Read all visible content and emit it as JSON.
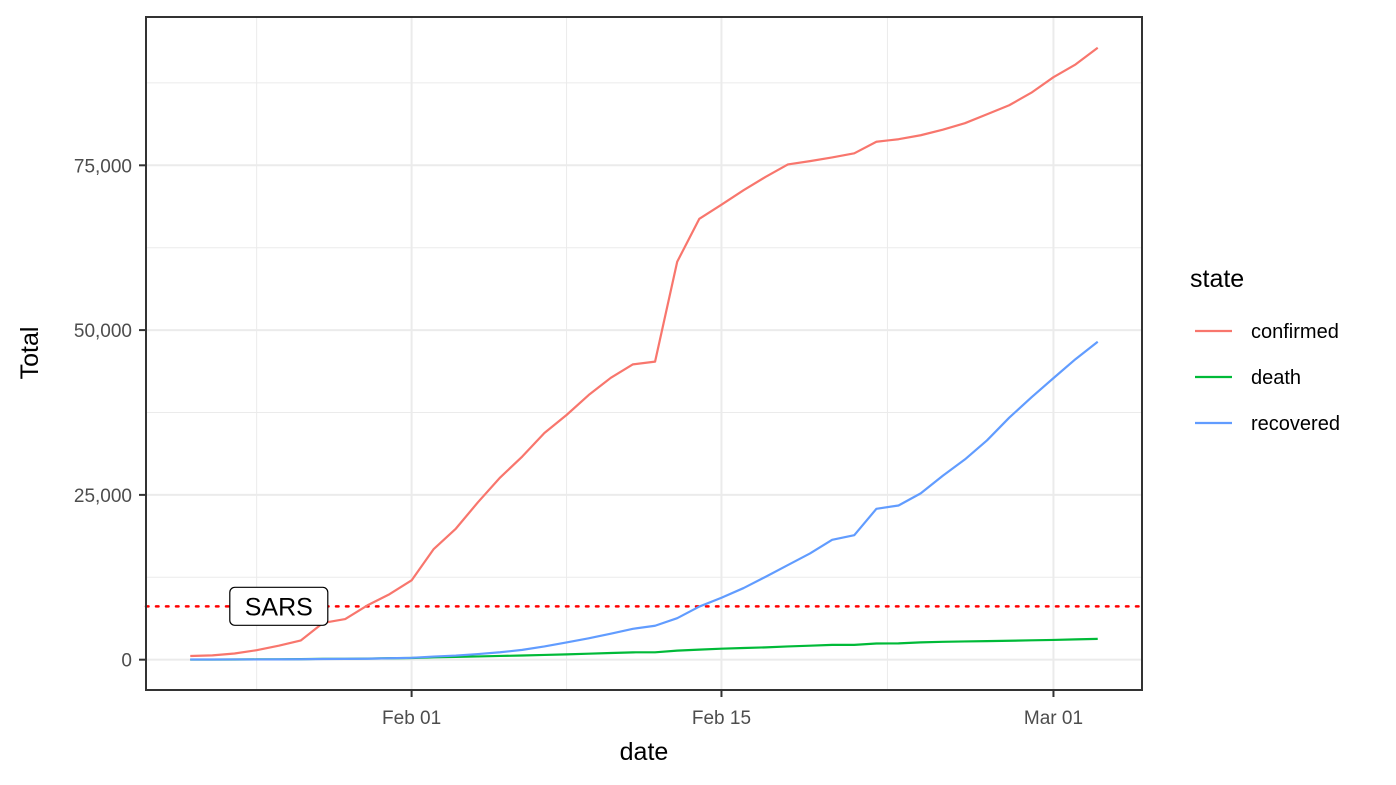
{
  "chart_data": {
    "type": "line",
    "xlabel": "date",
    "ylabel": "Total",
    "x_ticks": [
      {
        "date": "2020-02-01",
        "label": "Feb 01"
      },
      {
        "date": "2020-02-15",
        "label": "Feb 15"
      },
      {
        "date": "2020-03-01",
        "label": "Mar 01"
      }
    ],
    "y_ticks": [
      {
        "value": 0,
        "label": "0"
      },
      {
        "value": 25000,
        "label": "25,000"
      },
      {
        "value": 50000,
        "label": "50,000"
      },
      {
        "value": 75000,
        "label": "75,000"
      }
    ],
    "xlim": [
      "2020-01-20",
      "2020-03-05"
    ],
    "ylim": [
      -4600,
      97500
    ],
    "grid": true,
    "legend": {
      "title": "state",
      "placement": "right"
    },
    "series": [
      {
        "name": "confirmed",
        "color": "#F8766D",
        "points": [
          [
            "2020-01-22",
            555
          ],
          [
            "2020-01-23",
            653
          ],
          [
            "2020-01-24",
            941
          ],
          [
            "2020-01-25",
            1438
          ],
          [
            "2020-01-26",
            2118
          ],
          [
            "2020-01-27",
            2927
          ],
          [
            "2020-01-28",
            5578
          ],
          [
            "2020-01-29",
            6166
          ],
          [
            "2020-01-30",
            8234
          ],
          [
            "2020-01-31",
            9927
          ],
          [
            "2020-02-01",
            12038
          ],
          [
            "2020-02-02",
            16787
          ],
          [
            "2020-02-03",
            19881
          ],
          [
            "2020-02-04",
            23892
          ],
          [
            "2020-02-05",
            27635
          ],
          [
            "2020-02-06",
            30817
          ],
          [
            "2020-02-07",
            34391
          ],
          [
            "2020-02-08",
            37120
          ],
          [
            "2020-02-09",
            40150
          ],
          [
            "2020-02-10",
            42762
          ],
          [
            "2020-02-11",
            44802
          ],
          [
            "2020-02-12",
            45221
          ],
          [
            "2020-02-13",
            60368
          ],
          [
            "2020-02-14",
            66885
          ],
          [
            "2020-02-15",
            69030
          ],
          [
            "2020-02-16",
            71224
          ],
          [
            "2020-02-17",
            73258
          ],
          [
            "2020-02-18",
            75136
          ],
          [
            "2020-02-19",
            75639
          ],
          [
            "2020-02-20",
            76197
          ],
          [
            "2020-02-21",
            76819
          ],
          [
            "2020-02-22",
            78572
          ],
          [
            "2020-02-23",
            78958
          ],
          [
            "2020-02-24",
            79561
          ],
          [
            "2020-02-25",
            80406
          ],
          [
            "2020-02-26",
            81388
          ],
          [
            "2020-02-27",
            82746
          ],
          [
            "2020-02-28",
            84112
          ],
          [
            "2020-02-29",
            86011
          ],
          [
            "2020-03-01",
            88369
          ],
          [
            "2020-03-02",
            90306
          ],
          [
            "2020-03-03",
            92840
          ]
        ]
      },
      {
        "name": "death",
        "color": "#00BA38",
        "points": [
          [
            "2020-01-22",
            17
          ],
          [
            "2020-01-23",
            18
          ],
          [
            "2020-01-24",
            26
          ],
          [
            "2020-01-25",
            42
          ],
          [
            "2020-01-26",
            56
          ],
          [
            "2020-01-27",
            82
          ],
          [
            "2020-01-28",
            131
          ],
          [
            "2020-01-29",
            133
          ],
          [
            "2020-01-30",
            171
          ],
          [
            "2020-01-31",
            213
          ],
          [
            "2020-02-01",
            259
          ],
          [
            "2020-02-02",
            362
          ],
          [
            "2020-02-03",
            426
          ],
          [
            "2020-02-04",
            492
          ],
          [
            "2020-02-05",
            564
          ],
          [
            "2020-02-06",
            634
          ],
          [
            "2020-02-07",
            719
          ],
          [
            "2020-02-08",
            806
          ],
          [
            "2020-02-09",
            906
          ],
          [
            "2020-02-10",
            1013
          ],
          [
            "2020-02-11",
            1113
          ],
          [
            "2020-02-12",
            1118
          ],
          [
            "2020-02-13",
            1371
          ],
          [
            "2020-02-14",
            1523
          ],
          [
            "2020-02-15",
            1666
          ],
          [
            "2020-02-16",
            1770
          ],
          [
            "2020-02-17",
            1868
          ],
          [
            "2020-02-18",
            2007
          ],
          [
            "2020-02-19",
            2122
          ],
          [
            "2020-02-20",
            2247
          ],
          [
            "2020-02-21",
            2251
          ],
          [
            "2020-02-22",
            2458
          ],
          [
            "2020-02-23",
            2469
          ],
          [
            "2020-02-24",
            2629
          ],
          [
            "2020-02-25",
            2708
          ],
          [
            "2020-02-26",
            2770
          ],
          [
            "2020-02-27",
            2814
          ],
          [
            "2020-02-28",
            2872
          ],
          [
            "2020-02-29",
            2941
          ],
          [
            "2020-03-01",
            2996
          ],
          [
            "2020-03-02",
            3085
          ],
          [
            "2020-03-03",
            3160
          ]
        ]
      },
      {
        "name": "recovered",
        "color": "#619CFF",
        "points": [
          [
            "2020-01-22",
            28
          ],
          [
            "2020-01-23",
            30
          ],
          [
            "2020-01-24",
            36
          ],
          [
            "2020-01-25",
            39
          ],
          [
            "2020-01-26",
            52
          ],
          [
            "2020-01-27",
            61
          ],
          [
            "2020-01-28",
            107
          ],
          [
            "2020-01-29",
            126
          ],
          [
            "2020-01-30",
            143
          ],
          [
            "2020-01-31",
            222
          ],
          [
            "2020-02-01",
            284
          ],
          [
            "2020-02-02",
            472
          ],
          [
            "2020-02-03",
            623
          ],
          [
            "2020-02-04",
            852
          ],
          [
            "2020-02-05",
            1124
          ],
          [
            "2020-02-06",
            1487
          ],
          [
            "2020-02-07",
            2011
          ],
          [
            "2020-02-08",
            2616
          ],
          [
            "2020-02-09",
            3244
          ],
          [
            "2020-02-10",
            3946
          ],
          [
            "2020-02-11",
            4683
          ],
          [
            "2020-02-12",
            5150
          ],
          [
            "2020-02-13",
            6295
          ],
          [
            "2020-02-14",
            8058
          ],
          [
            "2020-02-15",
            9395
          ],
          [
            "2020-02-16",
            10865
          ],
          [
            "2020-02-17",
            12583
          ],
          [
            "2020-02-18",
            14352
          ],
          [
            "2020-02-19",
            16121
          ],
          [
            "2020-02-20",
            18177
          ],
          [
            "2020-02-21",
            18890
          ],
          [
            "2020-02-22",
            22886
          ],
          [
            "2020-02-23",
            23394
          ],
          [
            "2020-02-24",
            25227
          ],
          [
            "2020-02-25",
            27905
          ],
          [
            "2020-02-26",
            30384
          ],
          [
            "2020-02-27",
            33277
          ],
          [
            "2020-02-28",
            36711
          ],
          [
            "2020-02-29",
            39782
          ],
          [
            "2020-03-01",
            42716
          ],
          [
            "2020-03-02",
            45602
          ],
          [
            "2020-03-03",
            48228
          ]
        ]
      }
    ],
    "annotations": [
      {
        "type": "hline",
        "value": 8096,
        "color": "#FF0000",
        "style": "dotted"
      },
      {
        "type": "label",
        "text": "SARS",
        "x": "2020-01-26",
        "y": 8096
      }
    ]
  }
}
